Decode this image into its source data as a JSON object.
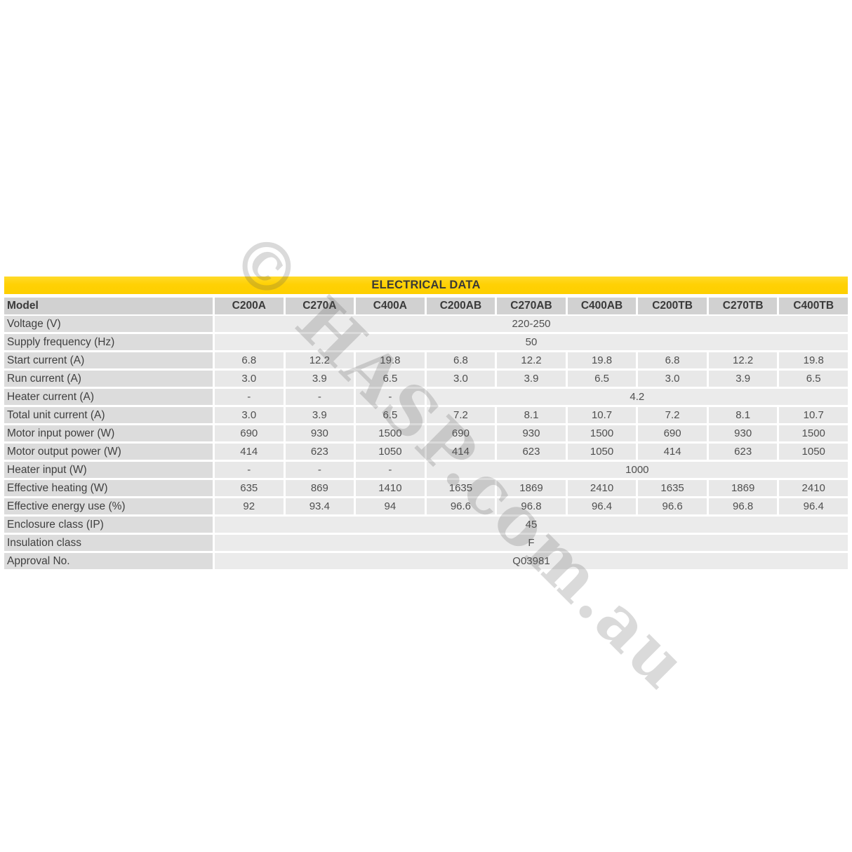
{
  "title": "ELECTRICAL DATA",
  "watermark": {
    "text": "© HASP.com.au"
  },
  "colors": {
    "band_yellow": "#FFD104",
    "header_cell_gray": "#D1D1D1",
    "label_cell_gray": "#DCDCDC",
    "data_cell_gray": "#E8E8E8",
    "text_dark": "#3F3F3F",
    "watermark_gray": "#DADADA"
  },
  "table": {
    "header": {
      "label": "Model",
      "columns": [
        "C200A",
        "C270A",
        "C400A",
        "C200AB",
        "C270AB",
        "C400AB",
        "C200TB",
        "C270TB",
        "C400TB"
      ]
    },
    "rows": [
      {
        "label": "Voltage (V)",
        "cells": [
          {
            "t": "220-250",
            "span": 9
          }
        ]
      },
      {
        "label": "Supply frequency (Hz)",
        "cells": [
          {
            "t": "50",
            "span": 9
          }
        ]
      },
      {
        "label": "Start current (A)",
        "cells": [
          {
            "t": "6.8"
          },
          {
            "t": "12.2"
          },
          {
            "t": "19.8"
          },
          {
            "t": "6.8"
          },
          {
            "t": "12.2"
          },
          {
            "t": "19.8"
          },
          {
            "t": "6.8"
          },
          {
            "t": "12.2"
          },
          {
            "t": "19.8"
          }
        ]
      },
      {
        "label": "Run current (A)",
        "cells": [
          {
            "t": "3.0"
          },
          {
            "t": "3.9"
          },
          {
            "t": "6.5"
          },
          {
            "t": "3.0"
          },
          {
            "t": "3.9"
          },
          {
            "t": "6.5"
          },
          {
            "t": "3.0"
          },
          {
            "t": "3.9"
          },
          {
            "t": "6.5"
          }
        ]
      },
      {
        "label": "Heater current (A)",
        "cells": [
          {
            "t": "-"
          },
          {
            "t": "-"
          },
          {
            "t": "-"
          },
          {
            "t": "4.2",
            "span": 6
          }
        ]
      },
      {
        "label": "Total unit current (A)",
        "cells": [
          {
            "t": "3.0"
          },
          {
            "t": "3.9"
          },
          {
            "t": "6.5"
          },
          {
            "t": "7.2"
          },
          {
            "t": "8.1"
          },
          {
            "t": "10.7"
          },
          {
            "t": "7.2"
          },
          {
            "t": "8.1"
          },
          {
            "t": "10.7"
          }
        ]
      },
      {
        "label": "Motor input power (W)",
        "cells": [
          {
            "t": "690"
          },
          {
            "t": "930"
          },
          {
            "t": "1500"
          },
          {
            "t": "690"
          },
          {
            "t": "930"
          },
          {
            "t": "1500"
          },
          {
            "t": "690"
          },
          {
            "t": "930"
          },
          {
            "t": "1500"
          }
        ]
      },
      {
        "label": "Motor output power (W)",
        "cells": [
          {
            "t": "414"
          },
          {
            "t": "623"
          },
          {
            "t": "1050"
          },
          {
            "t": "414"
          },
          {
            "t": "623"
          },
          {
            "t": "1050"
          },
          {
            "t": "414"
          },
          {
            "t": "623"
          },
          {
            "t": "1050"
          }
        ]
      },
      {
        "label": "Heater input (W)",
        "cells": [
          {
            "t": "-"
          },
          {
            "t": "-"
          },
          {
            "t": "-"
          },
          {
            "t": "1000",
            "span": 6
          }
        ]
      },
      {
        "label": "Effective heating (W)",
        "cells": [
          {
            "t": "635"
          },
          {
            "t": "869"
          },
          {
            "t": "1410"
          },
          {
            "t": "1635"
          },
          {
            "t": "1869"
          },
          {
            "t": "2410"
          },
          {
            "t": "1635"
          },
          {
            "t": "1869"
          },
          {
            "t": "2410"
          }
        ]
      },
      {
        "label": "Effective energy use (%)",
        "cells": [
          {
            "t": "92"
          },
          {
            "t": "93.4"
          },
          {
            "t": "94"
          },
          {
            "t": "96.6"
          },
          {
            "t": "96.8"
          },
          {
            "t": "96.4"
          },
          {
            "t": "96.6"
          },
          {
            "t": "96.8"
          },
          {
            "t": "96.4"
          }
        ]
      },
      {
        "label": "Enclosure class (IP)",
        "cells": [
          {
            "t": "45",
            "span": 9
          }
        ]
      },
      {
        "label": "Insulation class",
        "cells": [
          {
            "t": "F",
            "span": 9
          }
        ]
      },
      {
        "label": "Approval No.",
        "cells": [
          {
            "t": "Q03981",
            "span": 9
          }
        ]
      }
    ]
  }
}
